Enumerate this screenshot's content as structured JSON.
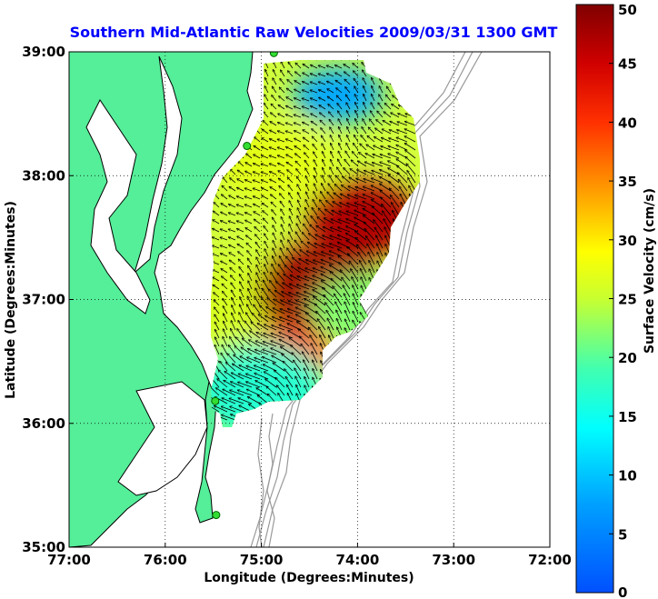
{
  "chart_data": {
    "type": "heatmap",
    "title": "Southern Mid-Atlantic Raw Velocities 2009/03/31 1300 GMT",
    "title_color": "#0000ff",
    "xlabel": "Longitude (Degrees:Minutes)",
    "ylabel": "Latitude (Degrees:Minutes)",
    "xlim": [
      -77,
      -72
    ],
    "ylim": [
      35,
      39
    ],
    "x_ticks": [
      {
        "value": -77,
        "label": "77:00"
      },
      {
        "value": -76,
        "label": "76:00"
      },
      {
        "value": -75,
        "label": "75:00"
      },
      {
        "value": -74,
        "label": "74:00"
      },
      {
        "value": -73,
        "label": "73:00"
      },
      {
        "value": -72,
        "label": "72:00"
      }
    ],
    "y_ticks": [
      {
        "value": 35,
        "label": "35:00"
      },
      {
        "value": 36,
        "label": "36:00"
      },
      {
        "value": 37,
        "label": "37:00"
      },
      {
        "value": 38,
        "label": "38:00"
      },
      {
        "value": 39,
        "label": "39:00"
      }
    ],
    "grid": true,
    "land_color": "#55ee99",
    "coastline_color": "#000000",
    "bathymetry_color": "#999999",
    "colorbar": {
      "label": "Surface Velocity (cm/s)",
      "range": [
        0,
        50
      ],
      "colormap": "jet",
      "ticks": [
        0,
        5,
        10,
        15,
        20,
        25,
        30,
        35,
        40,
        45,
        50
      ]
    },
    "stations": [
      {
        "lon": -74.87,
        "lat": 38.99
      },
      {
        "lon": -75.15,
        "lat": 38.24
      },
      {
        "lon": -75.48,
        "lat": 36.18
      },
      {
        "lon": -75.47,
        "lat": 35.26
      }
    ],
    "field_regions": [
      {
        "name": "northern low-velocity zone",
        "center": [
          -74.2,
          38.65
        ],
        "speed": 8
      },
      {
        "name": "nearshore band north",
        "center": [
          -74.85,
          38.1
        ],
        "speed": 27
      },
      {
        "name": "nearshore band south",
        "center": [
          -75.15,
          36.9
        ],
        "speed": 26
      },
      {
        "name": "southern corner",
        "center": [
          -75.5,
          36.3
        ],
        "speed": 20
      },
      {
        "name": "central jet core",
        "center": [
          -73.95,
          37.65
        ],
        "speed": 47
      },
      {
        "name": "southern jet core",
        "center": [
          -74.35,
          37.05
        ],
        "speed": 48
      },
      {
        "name": "jet tail",
        "center": [
          -74.7,
          36.55
        ],
        "speed": 40
      },
      {
        "name": "outer flank east",
        "center": [
          -73.9,
          36.9
        ],
        "speed": 22
      },
      {
        "name": "southern edge",
        "center": [
          -75.0,
          36.25
        ],
        "speed": 17
      }
    ]
  }
}
